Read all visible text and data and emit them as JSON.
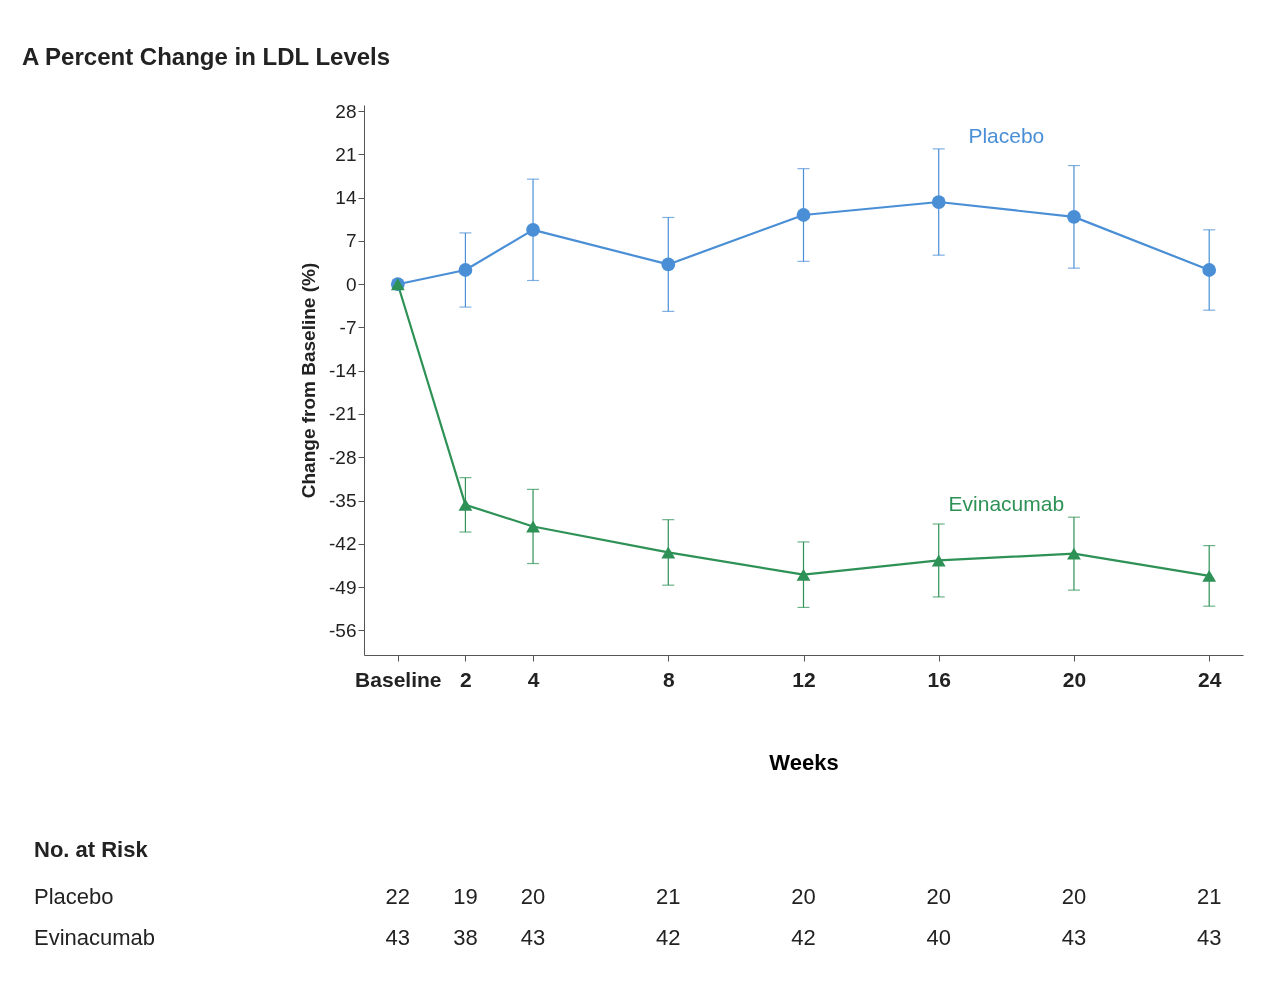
{
  "chart_data": {
    "type": "line",
    "title": "A  Percent Change in LDL Levels",
    "xlabel": "Weeks",
    "ylabel": "Change from Baseline (%)",
    "x": [
      0,
      2,
      4,
      8,
      12,
      16,
      20,
      24
    ],
    "series": [
      {
        "name": "Placebo",
        "color": "#4a8fd6",
        "marker": "circle",
        "values": [
          0,
          2.3,
          8.8,
          3.2,
          11.2,
          13.3,
          10.9,
          2.3
        ],
        "errors": [
          null,
          6,
          8.2,
          7.6,
          7.5,
          8.6,
          8.3,
          6.5
        ]
      },
      {
        "name": "Evinacumab",
        "color": "#2e9156",
        "marker": "triangle",
        "values": [
          0,
          -35.7,
          -39.2,
          -43.4,
          -47.0,
          -44.7,
          -43.6,
          -47.2
        ],
        "errors": [
          null,
          4.4,
          6,
          5.3,
          5.3,
          5.9,
          5.9,
          4.9
        ]
      }
    ],
    "xlim": [
      -1,
      25
    ],
    "xticks": [
      {
        "value": 0,
        "label": "Baseline"
      },
      2,
      4,
      8,
      12,
      16,
      20,
      24
    ],
    "ylim": [
      -60,
      29
    ],
    "yticks": [
      28,
      21,
      14,
      7,
      0,
      -7,
      -14,
      -21,
      -28,
      -35,
      -42,
      -49,
      -56
    ],
    "grid": false,
    "legend": false,
    "annotations": [
      "No. at Risk",
      "Placebo",
      "22 19 20 21 20 20 20 21",
      "Evinacumab",
      "43 38 43 42 42 40 43 43"
    ]
  }
}
